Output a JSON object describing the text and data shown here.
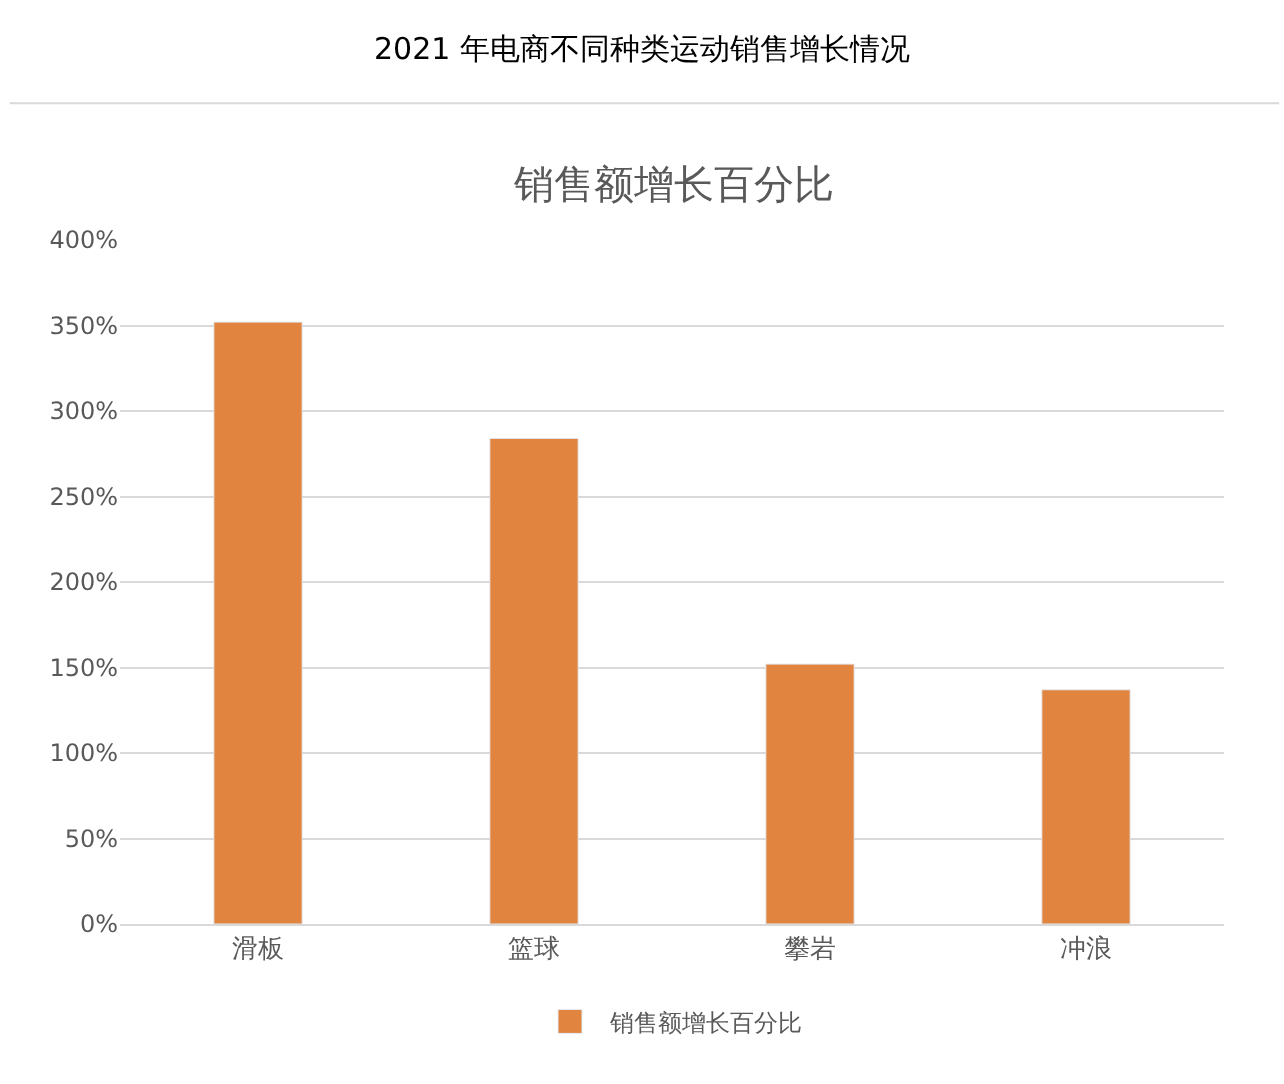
{
  "chart_data": {
    "type": "bar",
    "title": "2021 年电商不同种类运动销售增长情况",
    "subtitle": "销售额增长百分比",
    "categories": [
      "滑板",
      "篮球",
      "攀岩",
      "冲浪"
    ],
    "series": [
      {
        "name": "销售额增长百分比",
        "color": "#e0843f",
        "values": [
          352,
          284,
          152,
          137
        ]
      }
    ],
    "ylim": [
      0,
      400
    ],
    "yticks": [
      {
        "value": 0,
        "label": "0%"
      },
      {
        "value": 50,
        "label": "50%"
      },
      {
        "value": 100,
        "label": "100%"
      },
      {
        "value": 150,
        "label": "150%"
      },
      {
        "value": 200,
        "label": "200%"
      },
      {
        "value": 250,
        "label": "250%"
      },
      {
        "value": 300,
        "label": "300%"
      },
      {
        "value": 350,
        "label": "350%"
      },
      {
        "value": 400,
        "label": "400%"
      }
    ],
    "grid": "y",
    "legend": "bottom"
  }
}
